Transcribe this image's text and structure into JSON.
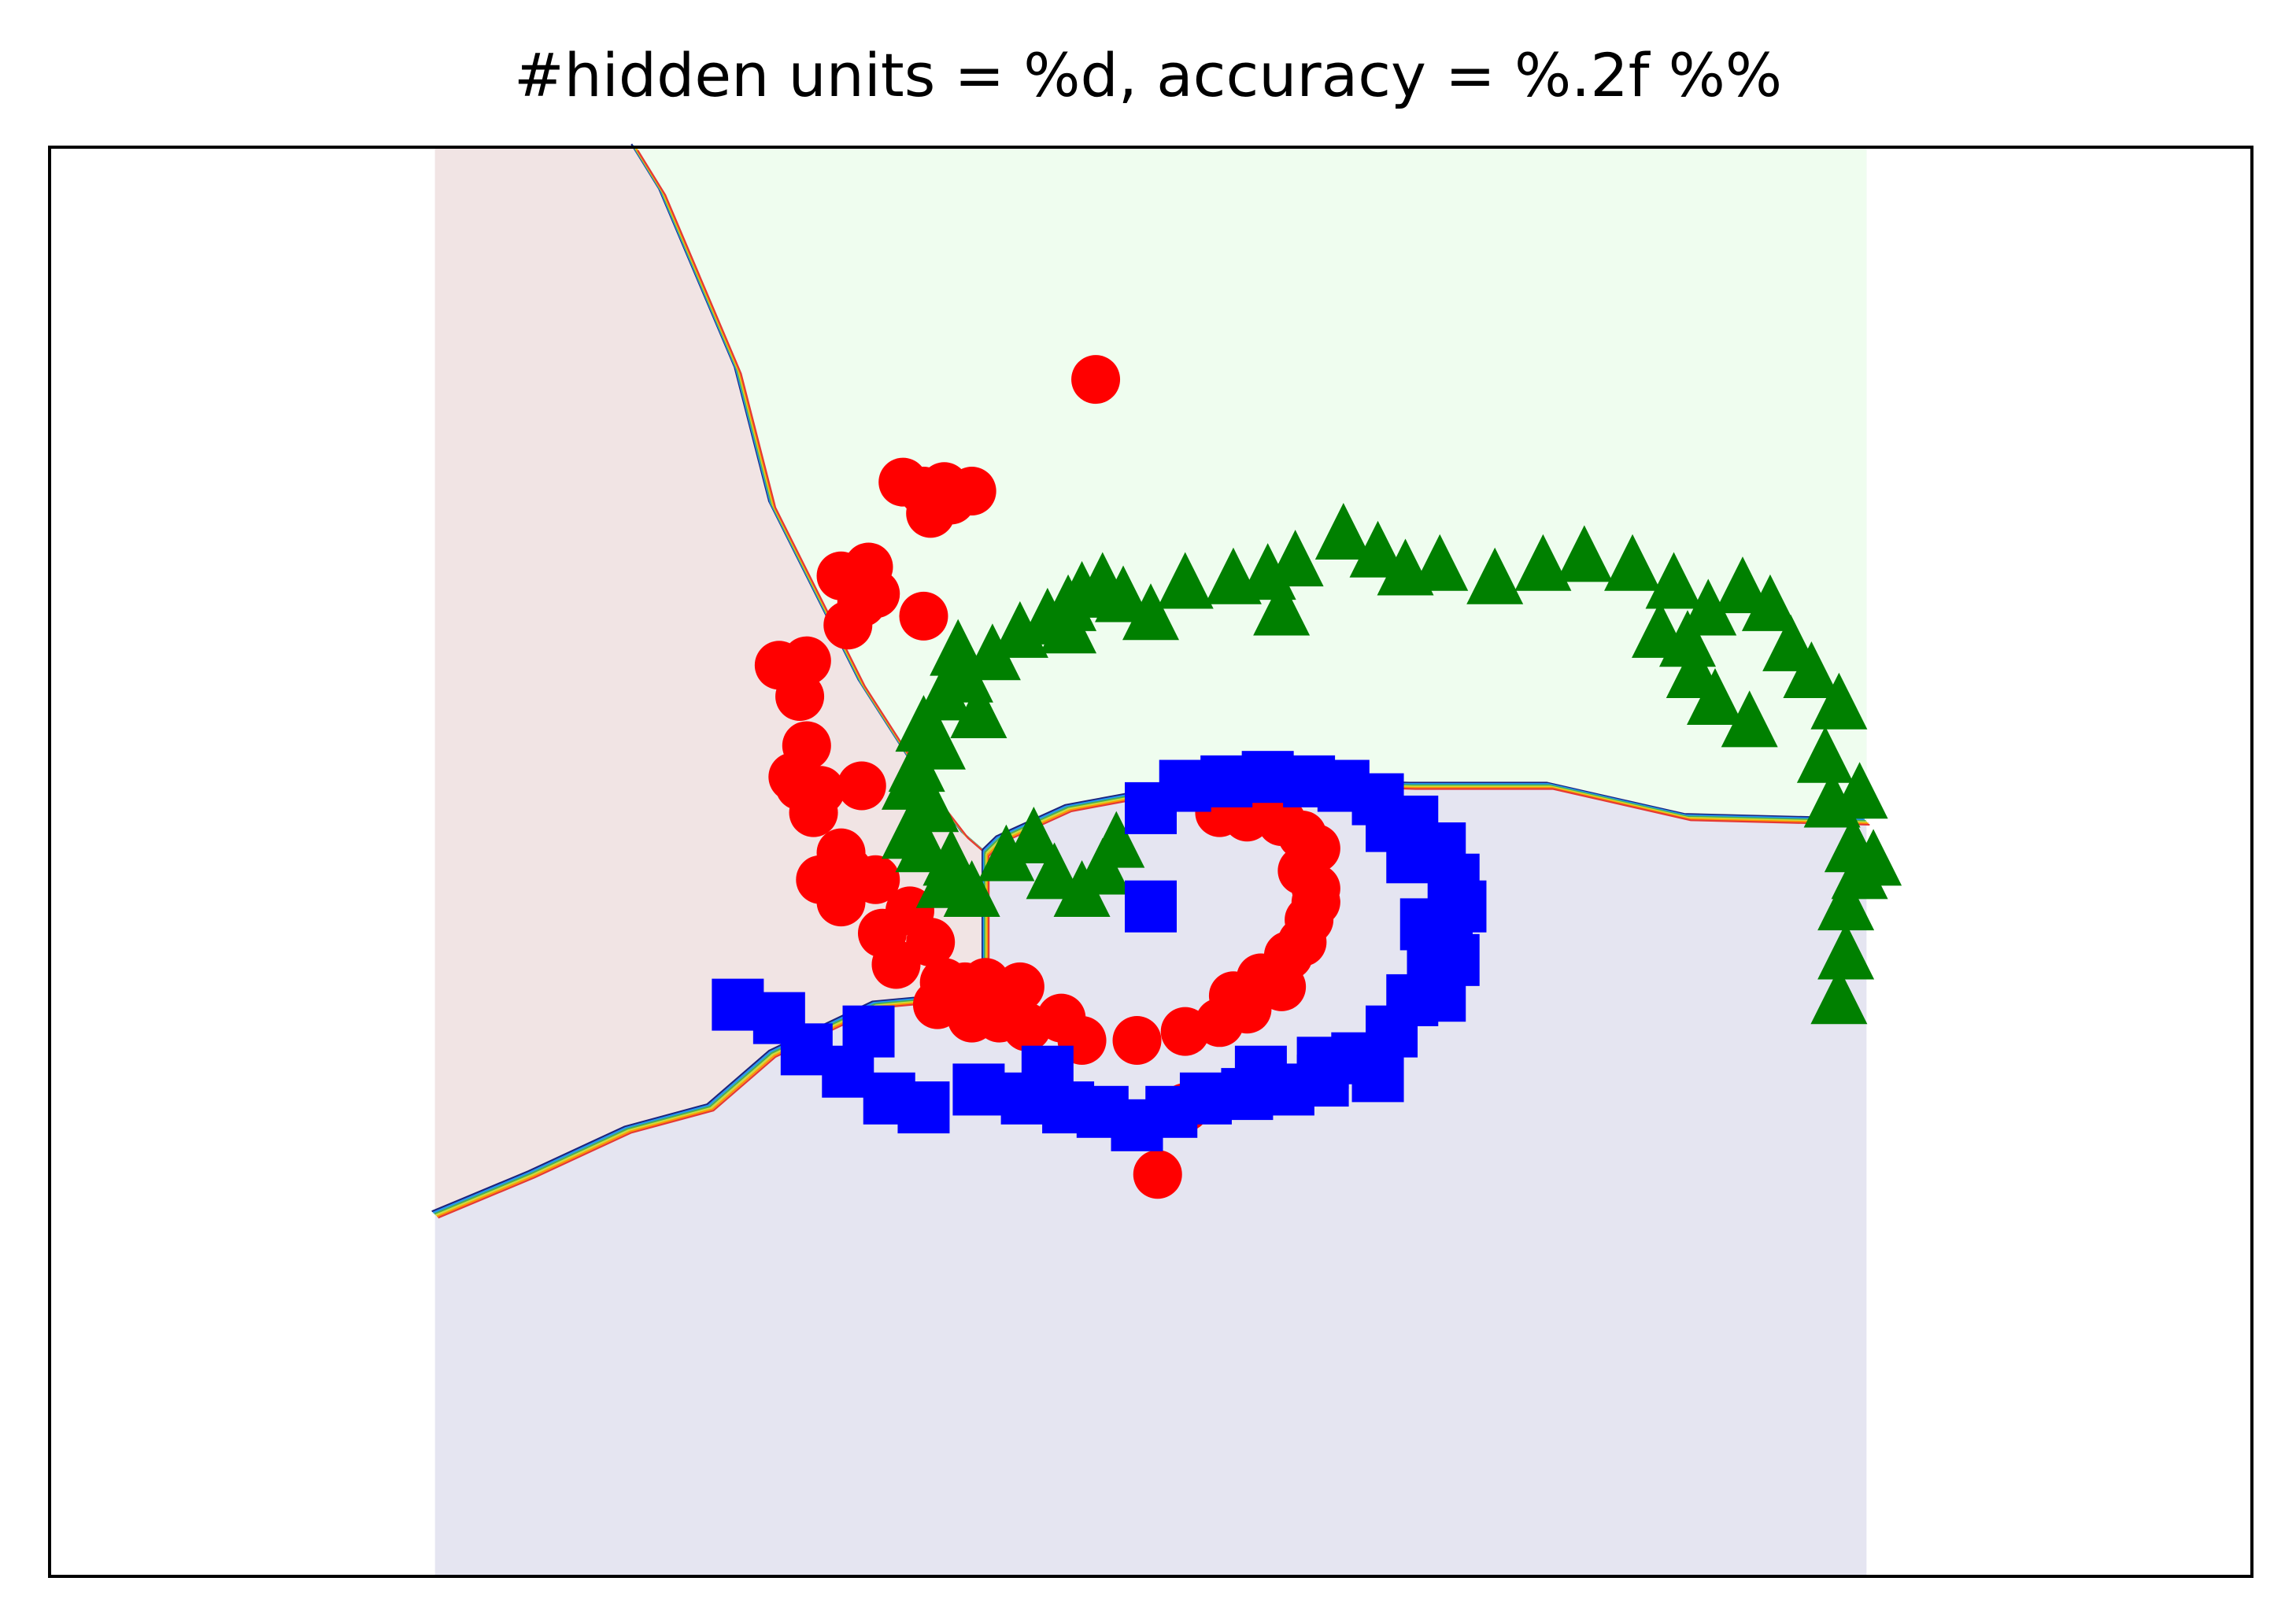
{
  "chart_data": {
    "type": "scatter",
    "title": "#hidden units = %d, accuracy = %.2f %%",
    "xlabel": "",
    "ylabel": "",
    "xlim": [
      -1.6,
      1.6
    ],
    "ylim": [
      -1.6,
      1.6
    ],
    "grid": false,
    "legend": "none",
    "ticks_visible": false,
    "decision_regions": {
      "x_extent": [
        -1.04,
        1.04
      ],
      "y_extent": [
        -1.6,
        1.6
      ],
      "colors": {
        "red": "#f1e4e4",
        "green": "#effdef",
        "blue": "#e5e5f1"
      },
      "boundary_red_green": [
        [
          -0.75,
          1.6
        ],
        [
          -0.71,
          1.5
        ],
        [
          -0.6,
          1.1
        ],
        [
          -0.55,
          0.8
        ],
        [
          -0.42,
          0.4
        ],
        [
          -0.32,
          0.16
        ],
        [
          -0.27,
          0.06
        ],
        [
          -0.24,
          0.02
        ]
      ],
      "boundary_red_blue": [
        [
          -0.24,
          0.02
        ],
        [
          -0.24,
          -0.25
        ],
        [
          -0.26,
          -0.3
        ],
        [
          -0.4,
          -0.32
        ],
        [
          -0.55,
          -0.43
        ],
        [
          -0.64,
          -0.55
        ],
        [
          -0.76,
          -0.6
        ],
        [
          -0.9,
          -0.7
        ],
        [
          -1.04,
          -0.79
        ]
      ],
      "boundary_green_blue": [
        [
          -0.24,
          0.02
        ],
        [
          -0.22,
          0.05
        ],
        [
          -0.12,
          0.12
        ],
        [
          0.02,
          0.16
        ],
        [
          0.18,
          0.18
        ],
        [
          0.38,
          0.17
        ],
        [
          0.58,
          0.17
        ],
        [
          0.78,
          0.1
        ],
        [
          1.04,
          0.09
        ]
      ]
    },
    "series": [
      {
        "marker": "circle",
        "color": "#ff0000",
        "points": [
          [
            -0.08,
            1.08
          ],
          [
            -0.36,
            0.85
          ],
          [
            -0.3,
            0.84
          ],
          [
            -0.33,
            0.83
          ],
          [
            -0.26,
            0.83
          ],
          [
            -0.29,
            0.81
          ],
          [
            -0.32,
            0.78
          ],
          [
            -0.41,
            0.66
          ],
          [
            -0.45,
            0.64
          ],
          [
            -0.4,
            0.6
          ],
          [
            -0.42,
            0.58
          ],
          [
            -0.33,
            0.55
          ],
          [
            -0.44,
            0.53
          ],
          [
            -0.54,
            0.44
          ],
          [
            -0.5,
            0.45
          ],
          [
            -0.51,
            0.37
          ],
          [
            -0.5,
            0.26
          ],
          [
            -0.52,
            0.19
          ],
          [
            -0.51,
            0.17
          ],
          [
            -0.48,
            0.16
          ],
          [
            -0.42,
            0.17
          ],
          [
            -0.49,
            0.11
          ],
          [
            -0.45,
            0.02
          ],
          [
            -0.44,
            -0.02
          ],
          [
            -0.4,
            -0.04
          ],
          [
            -0.48,
            -0.04
          ],
          [
            -0.45,
            -0.09
          ],
          [
            -0.35,
            -0.11
          ],
          [
            -0.39,
            -0.16
          ],
          [
            -0.32,
            -0.18
          ],
          [
            -0.37,
            -0.23
          ],
          [
            -0.3,
            -0.27
          ],
          [
            -0.27,
            -0.28
          ],
          [
            -0.24,
            -0.27
          ],
          [
            -0.19,
            -0.28
          ],
          [
            -0.31,
            -0.32
          ],
          [
            -0.26,
            -0.35
          ],
          [
            -0.22,
            -0.35
          ],
          [
            -0.18,
            -0.37
          ],
          [
            -0.13,
            -0.35
          ],
          [
            -0.1,
            -0.4
          ],
          [
            -0.02,
            -0.4
          ],
          [
            0.05,
            -0.38
          ],
          [
            0.1,
            -0.36
          ],
          [
            0.14,
            -0.33
          ],
          [
            0.12,
            -0.3
          ],
          [
            0.16,
            -0.26
          ],
          [
            0.19,
            -0.28
          ],
          [
            0.2,
            -0.21
          ],
          [
            0.22,
            -0.18
          ],
          [
            0.23,
            -0.13
          ],
          [
            0.24,
            -0.09
          ],
          [
            0.24,
            -0.06
          ],
          [
            0.22,
            -0.02
          ],
          [
            0.24,
            0.03
          ],
          [
            0.22,
            0.06
          ],
          [
            0.19,
            0.09
          ],
          [
            0.14,
            0.1
          ],
          [
            0.1,
            0.11
          ],
          [
            0.05,
            -0.55
          ],
          [
            0.01,
            -0.7
          ]
        ]
      },
      {
        "marker": "triangle",
        "color": "#008000",
        "points": [
          [
            -0.23,
            0.47
          ],
          [
            -0.19,
            0.52
          ],
          [
            -0.15,
            0.55
          ],
          [
            -0.12,
            0.58
          ],
          [
            -0.1,
            0.61
          ],
          [
            -0.07,
            0.63
          ],
          [
            -0.04,
            0.6
          ],
          [
            0.0,
            0.56
          ],
          [
            0.05,
            0.63
          ],
          [
            0.12,
            0.64
          ],
          [
            0.17,
            0.65
          ],
          [
            0.21,
            0.68
          ],
          [
            0.28,
            0.74
          ],
          [
            0.33,
            0.7
          ],
          [
            0.37,
            0.66
          ],
          [
            0.42,
            0.67
          ],
          [
            0.5,
            0.64
          ],
          [
            0.57,
            0.67
          ],
          [
            0.63,
            0.69
          ],
          [
            0.7,
            0.67
          ],
          [
            0.76,
            0.63
          ],
          [
            0.81,
            0.57
          ],
          [
            0.86,
            0.62
          ],
          [
            0.9,
            0.58
          ],
          [
            0.93,
            0.49
          ],
          [
            0.96,
            0.43
          ],
          [
            1.0,
            0.36
          ],
          [
            0.98,
            0.24
          ],
          [
            1.03,
            0.16
          ],
          [
            0.99,
            0.14
          ],
          [
            0.87,
            0.32
          ],
          [
            0.82,
            0.37
          ],
          [
            0.78,
            0.5
          ],
          [
            0.74,
            0.52
          ],
          [
            0.79,
            0.43
          ],
          [
            0.19,
            0.57
          ],
          [
            1.05,
            0.01
          ],
          [
            1.02,
            0.04
          ],
          [
            1.03,
            -0.02
          ],
          [
            1.01,
            -0.09
          ],
          [
            1.01,
            -0.2
          ],
          [
            1.0,
            -0.3
          ],
          [
            -0.27,
            0.42
          ],
          [
            -0.3,
            0.38
          ],
          [
            -0.33,
            0.31
          ],
          [
            -0.31,
            0.27
          ],
          [
            -0.34,
            0.22
          ],
          [
            -0.35,
            0.18
          ],
          [
            -0.32,
            0.13
          ],
          [
            -0.35,
            0.07
          ],
          [
            -0.33,
            0.04
          ],
          [
            -0.29,
            0.01
          ],
          [
            -0.3,
            -0.04
          ],
          [
            -0.26,
            -0.06
          ],
          [
            -0.21,
            0.02
          ],
          [
            -0.17,
            0.06
          ],
          [
            -0.14,
            -0.02
          ],
          [
            -0.1,
            -0.06
          ],
          [
            -0.07,
            -0.01
          ],
          [
            -0.05,
            0.05
          ],
          [
            -0.25,
            0.34
          ],
          [
            -0.28,
            0.48
          ],
          [
            -0.12,
            0.53
          ]
        ]
      },
      {
        "marker": "square",
        "color": "#0000ff",
        "points": [
          [
            0.0,
            0.12
          ],
          [
            0.05,
            0.17
          ],
          [
            0.11,
            0.18
          ],
          [
            0.17,
            0.19
          ],
          [
            0.23,
            0.18
          ],
          [
            0.28,
            0.17
          ],
          [
            0.33,
            0.14
          ],
          [
            0.38,
            0.09
          ],
          [
            0.42,
            0.03
          ],
          [
            0.44,
            -0.04
          ],
          [
            0.45,
            -0.1
          ],
          [
            0.43,
            -0.17
          ],
          [
            0.41,
            -0.24
          ],
          [
            0.38,
            -0.31
          ],
          [
            0.35,
            -0.38
          ],
          [
            0.3,
            -0.44
          ],
          [
            0.25,
            -0.49
          ],
          [
            0.2,
            -0.51
          ],
          [
            0.14,
            -0.52
          ],
          [
            0.08,
            -0.53
          ],
          [
            0.03,
            -0.56
          ],
          [
            -0.02,
            -0.59
          ],
          [
            -0.07,
            -0.56
          ],
          [
            -0.12,
            -0.55
          ],
          [
            -0.18,
            -0.53
          ],
          [
            -0.25,
            -0.51
          ],
          [
            -0.33,
            -0.55
          ],
          [
            -0.38,
            -0.53
          ],
          [
            -0.44,
            -0.47
          ],
          [
            -0.5,
            -0.42
          ],
          [
            -0.54,
            -0.35
          ],
          [
            -0.6,
            -0.32
          ],
          [
            -0.41,
            -0.38
          ],
          [
            0.33,
            -0.48
          ],
          [
            0.42,
            -0.3
          ],
          [
            0.44,
            -0.22
          ],
          [
            0.4,
            -0.14
          ],
          [
            0.38,
            0.01
          ],
          [
            0.35,
            0.08
          ],
          [
            0.25,
            -0.45
          ],
          [
            0.16,
            -0.47
          ],
          [
            -0.15,
            -0.47
          ],
          [
            0.0,
            -0.1
          ]
        ]
      }
    ]
  }
}
